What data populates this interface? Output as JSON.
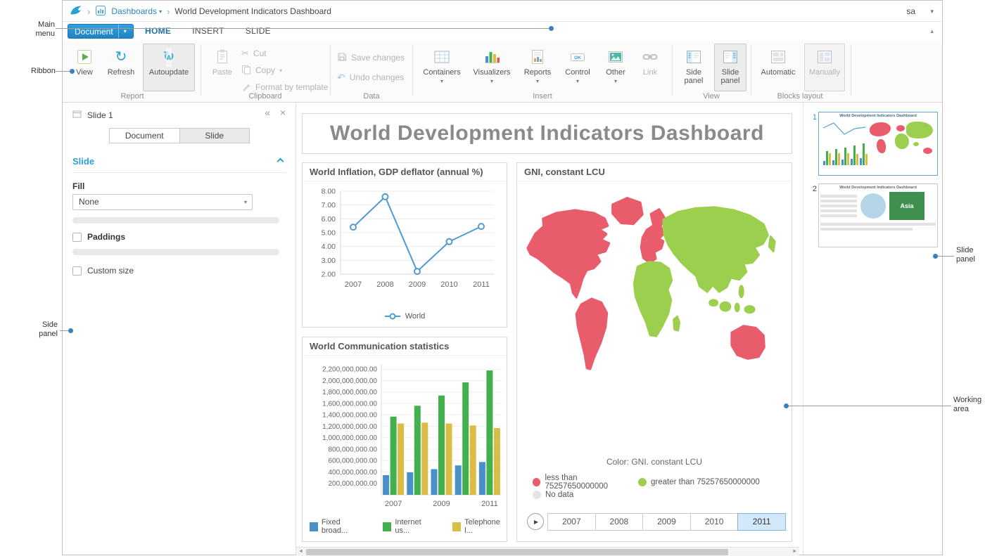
{
  "annotations": {
    "main_menu": "Main menu",
    "ribbon": "Ribbon",
    "side_panel": "Side panel",
    "slide_panel": "Slide panel",
    "working_area": "Working area"
  },
  "icons": {
    "breadcrumb_sep": "›",
    "caret_down": "▾",
    "caret_up": "▴",
    "refresh": "↻",
    "autoupdate_letter": "A",
    "cut": "✂",
    "undo": "↶",
    "collapse_left": "«",
    "close": "×",
    "ok": "OK",
    "play": "▶",
    "scroll_left": "◄",
    "scroll_right": "►"
  },
  "topbar": {
    "dashboards_label": "Dashboards",
    "document_title": "World Development Indicators Dashboard",
    "user": "sa"
  },
  "menu": {
    "document_label": "Document",
    "home": "HOME",
    "insert": "INSERT",
    "slide": "SLIDE"
  },
  "ribbon": {
    "report_label": "Report",
    "view": "View",
    "refresh": "Refresh",
    "autoupdate": "Autoupdate",
    "clipboard_label": "Clipboard",
    "paste": "Paste",
    "cut": "Cut",
    "copy": "Copy",
    "format_by_template": "Format by template",
    "data_label": "Data",
    "save_changes": "Save changes",
    "undo_changes": "Undo changes",
    "insert_label": "Insert",
    "containers": "Containers",
    "visualizers": "Visualizers",
    "reports": "Reports",
    "control": "Control",
    "other": "Other",
    "link": "Link",
    "view_label": "View",
    "side_panel": "Side panel",
    "slide_panel": "Slide panel",
    "blocks_label": "Blocks layout",
    "automatic": "Automatic",
    "manually": "Manually"
  },
  "sidebar": {
    "header": "Slide 1",
    "tab_document": "Document",
    "tab_slide": "Slide",
    "section_title": "Slide",
    "fill_label": "Fill",
    "fill_value": "None",
    "paddings_label": "Paddings",
    "custom_size_label": "Custom size"
  },
  "dashboard": {
    "title": "World Development Indicators Dashboard"
  },
  "chart_data": [
    {
      "type": "line",
      "title": "World Inflation, GDP deflator (annual %)",
      "categories": [
        "2007",
        "2008",
        "2009",
        "2010",
        "2011"
      ],
      "series": [
        {
          "name": "World",
          "values": [
            5.4,
            7.6,
            2.2,
            4.35,
            5.45
          ]
        }
      ],
      "ylim": [
        2,
        8
      ],
      "yticks": [
        "8.00",
        "7.00",
        "6.00",
        "5.00",
        "4.00",
        "3.00",
        "2.00"
      ],
      "line_color": "#4d9bd1",
      "legend_position": "bottom"
    },
    {
      "type": "bar",
      "title": "World Communication statistics",
      "categories": [
        "2007",
        "2008",
        "2009",
        "2010",
        "2011"
      ],
      "x_labels_shown": [
        "2007",
        "2009",
        "2011"
      ],
      "series": [
        {
          "name": "Fixed broad...",
          "color": "#4a90c8",
          "values": [
            345000000,
            395000000,
            450000000,
            515000000,
            575000000
          ]
        },
        {
          "name": "Internet us...",
          "color": "#41b04d",
          "values": [
            1370000000,
            1560000000,
            1740000000,
            1970000000,
            2180000000
          ]
        },
        {
          "name": "Telephone l...",
          "color": "#d9bd44",
          "values": [
            1250000000,
            1265000000,
            1250000000,
            1215000000,
            1170000000
          ]
        }
      ],
      "ylim": [
        0,
        2290000000
      ],
      "ytick_max": 2200000000,
      "ytick_step": 200000000,
      "yticks": [
        "2,200,000,000.00",
        "2,000,000,000.00",
        "1,800,000,000.00",
        "1,600,000,000.00",
        "1,400,000,000.00",
        "1,200,000,000.00",
        "1,000,000,000.00",
        "800,000,000.00",
        "600,000,000.00",
        "400,000,000.00",
        "200,000,000.00"
      ],
      "legend_position": "bottom"
    },
    {
      "type": "map",
      "title": "GNI, constant LCU",
      "caption": "Color: GNI. constant LCU",
      "legend": [
        {
          "label": "less than 75257650000000",
          "color": "#e95c6c"
        },
        {
          "label": "greater than 75257650000000",
          "color": "#9dcf4f"
        },
        {
          "label": "No data",
          "color": "#e4e4e4"
        }
      ],
      "regions": {
        "north_america": "less",
        "greenland": "less",
        "south_america": "less",
        "europe": "less",
        "scandinavia": "less",
        "australia": "less",
        "africa": "greater",
        "madagascar": "greater",
        "asia": "greater",
        "japan": "greater",
        "se_asia": "greater"
      },
      "years": [
        "2007",
        "2008",
        "2009",
        "2010",
        "2011"
      ],
      "selected_year": "2011"
    }
  ],
  "slides": {
    "num1": "1",
    "num2": "2",
    "asia": "Asia"
  }
}
